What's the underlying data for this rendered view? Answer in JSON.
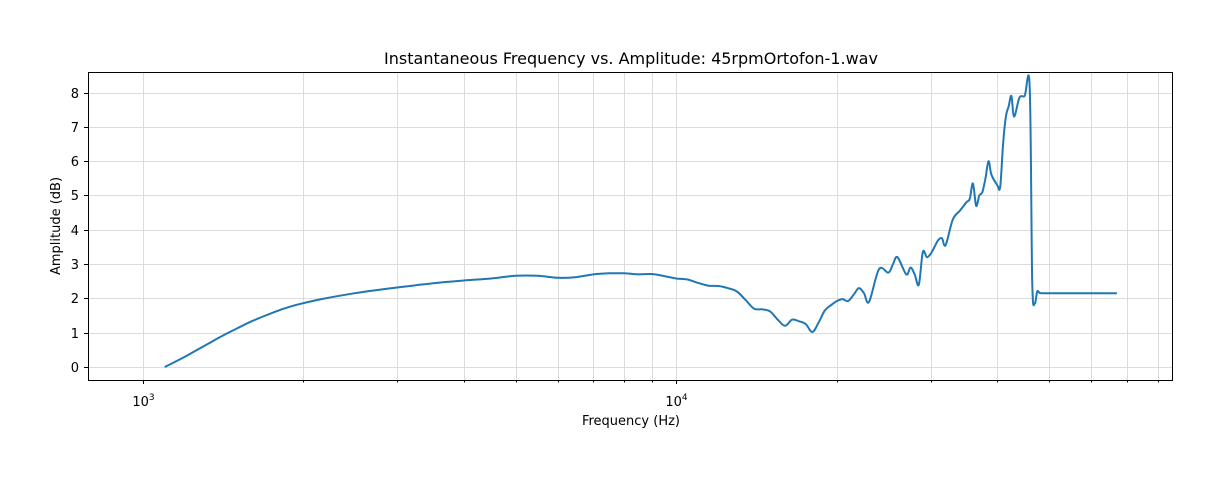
{
  "chart_data": {
    "type": "line",
    "title": "Instantaneous Frequency vs. Amplitude: 45rpmOrtofon-1.wav",
    "xlabel": "Frequency (Hz)",
    "ylabel": "Amplitude (dB)",
    "xscale": "log",
    "xlim": [
      790,
      85000
    ],
    "ylim": [
      -0.38,
      8.6
    ],
    "yticks": [
      0,
      1,
      2,
      3,
      4,
      5,
      6,
      7,
      8
    ],
    "xticks_major": [
      {
        "value": 1000,
        "base": "10",
        "exp": "3"
      },
      {
        "value": 10000,
        "base": "10",
        "exp": "4"
      }
    ],
    "xticks_minor": [
      2000,
      3000,
      4000,
      5000,
      6000,
      7000,
      8000,
      9000,
      20000,
      30000,
      40000,
      50000,
      60000,
      70000,
      80000
    ],
    "grid": true,
    "line_color": "#1f77b4",
    "series": [
      {
        "x": [
          1100,
          1200,
          1300,
          1400,
          1500,
          1600,
          1700,
          1800,
          1900,
          2000,
          2200,
          2500,
          2800,
          3200,
          3600,
          4000,
          4500,
          5000,
          5500,
          6000,
          6500,
          7000,
          7500,
          8000,
          8500,
          9000,
          9500,
          10000,
          10500,
          11000,
          11500,
          12000,
          12500,
          13000,
          13500,
          14000,
          14500,
          15000,
          15500,
          16000,
          16500,
          17000,
          17500,
          18000,
          18500,
          19000,
          19500,
          20000,
          20500,
          21000,
          21500,
          22000,
          22500,
          23000,
          24000,
          25000,
          25500,
          26000,
          27000,
          27500,
          28000,
          28500,
          29000,
          29500,
          30000,
          30500,
          31000,
          31500,
          32000,
          33000,
          34000,
          35000,
          35500,
          36000,
          36500,
          37000,
          37500,
          38000,
          38500,
          39000,
          40000,
          40500,
          41000,
          41500,
          42000,
          42500,
          43000,
          44000,
          45000,
          46000,
          46500,
          47000,
          47500,
          48000,
          48500,
          49000,
          49500,
          50000,
          50500,
          51000,
          51500,
          52000,
          53000,
          54000,
          55000,
          60000,
          67000
        ],
        "y": [
          0.0,
          0.3,
          0.6,
          0.88,
          1.12,
          1.33,
          1.5,
          1.65,
          1.77,
          1.86,
          2.0,
          2.15,
          2.26,
          2.37,
          2.46,
          2.52,
          2.58,
          2.66,
          2.66,
          2.6,
          2.62,
          2.7,
          2.73,
          2.73,
          2.7,
          2.71,
          2.65,
          2.58,
          2.55,
          2.45,
          2.37,
          2.36,
          2.3,
          2.2,
          1.95,
          1.7,
          1.68,
          1.62,
          1.38,
          1.2,
          1.38,
          1.33,
          1.25,
          1.02,
          1.3,
          1.65,
          1.8,
          1.92,
          1.98,
          1.92,
          2.1,
          2.3,
          2.15,
          1.9,
          2.85,
          2.75,
          3.0,
          3.2,
          2.7,
          2.9,
          2.7,
          2.4,
          3.35,
          3.2,
          3.3,
          3.5,
          3.7,
          3.75,
          3.55,
          4.3,
          4.55,
          4.8,
          4.9,
          5.35,
          4.7,
          5.0,
          5.1,
          5.5,
          6.0,
          5.6,
          5.3,
          5.25,
          6.5,
          7.3,
          7.6,
          7.9,
          7.3,
          7.85,
          7.9,
          8.15,
          2.5,
          1.85,
          2.2,
          2.16,
          2.15,
          2.15,
          2.15,
          2.15,
          2.15,
          2.15,
          2.15,
          2.15,
          2.15,
          2.15,
          2.15,
          2.15,
          2.15
        ]
      }
    ]
  }
}
